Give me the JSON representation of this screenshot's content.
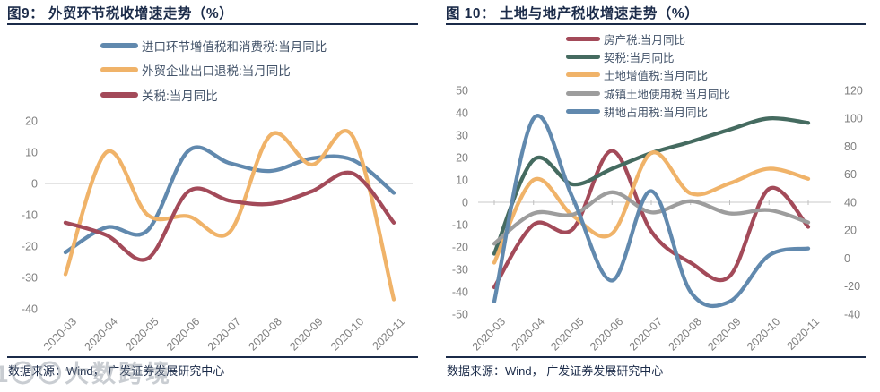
{
  "watermark": "1〇〇大数跨境",
  "colors": {
    "title_navy": "#1b2b49",
    "legend_text": "#44546a",
    "axis_label_gray": "#7f7f7f",
    "zero_line_gray": "#c9c9c9",
    "series_blue": "#6189ae",
    "series_yellow": "#f0b369",
    "series_red": "#a34a59",
    "series_green": "#456b60",
    "series_gray": "#9d9d9d"
  },
  "panels": [
    {
      "title": "图9： 外贸环节税收增速走势（%）",
      "source": "数据来源：Wind， 广发证券发展研究中心",
      "chart_data": {
        "type": "line",
        "title": "外贸环节税收增速走势（%）",
        "x": [
          "2020-03",
          "2020-04",
          "2020-05",
          "2020-06",
          "2020-07",
          "2020-08",
          "2020-09",
          "2020-10",
          "2020-11"
        ],
        "ylim": [
          -40,
          20
        ],
        "ytick_step": 10,
        "grid": "zero-line-only",
        "legend_position": "top",
        "line_style": "smooth",
        "series": [
          {
            "name": "进口环节增值税和消费税:当月同比",
            "color": "#6189ae",
            "axis": "left",
            "values": [
              -22,
              -14,
              -15,
              10.5,
              6.5,
              4,
              8,
              7.5,
              -3
            ]
          },
          {
            "name": "外贸企业出口退税:当月同比",
            "color": "#f0b369",
            "axis": "left",
            "values": [
              -29,
              10,
              -10,
              -10.5,
              -15.5,
              15.5,
              6,
              15,
              -37
            ]
          },
          {
            "name": "关税:当月同比",
            "color": "#a34a59",
            "axis": "left",
            "values": [
              -12.5,
              -16.5,
              -24,
              -2.5,
              -5.5,
              -6.5,
              -2.5,
              3.2,
              -12.5
            ]
          }
        ]
      }
    },
    {
      "title": "图 10： 土地与地产税收增速走势（%）",
      "source": "数据来源：Wind， 广发证券发展研究中心",
      "chart_data": {
        "type": "line",
        "title": "土地与地产税收增速走势（%）",
        "x": [
          "2020-03",
          "2020-04",
          "2020-05",
          "2020-06",
          "2020-07",
          "2020-08",
          "2020-09",
          "2020-10",
          "2020-11"
        ],
        "ylim_left": [
          -50,
          50
        ],
        "ylim_right": [
          -40,
          120
        ],
        "ytick_step_left": 10,
        "ytick_step_right": 20,
        "grid": "zero-line-only",
        "legend_position": "top",
        "line_style": "smooth",
        "series": [
          {
            "name": "房产税:当月同比",
            "color": "#a34a59",
            "axis": "left",
            "values": [
              -38,
              -10,
              -12,
              23,
              -13,
              -27,
              -33,
              6,
              -11
            ]
          },
          {
            "name": "契税:当月同比",
            "color": "#456b60",
            "axis": "left",
            "values": [
              -23,
              19,
              8,
              15,
              22,
              27,
              32.5,
              37.5,
              35.5
            ]
          },
          {
            "name": "土地增值税:当月同比",
            "color": "#f0b369",
            "axis": "left",
            "values": [
              -27,
              10,
              -6,
              -14,
              22,
              4,
              8.5,
              15,
              10.5
            ]
          },
          {
            "name": "城镇土地使用税:当月同比",
            "color": "#9d9d9d",
            "axis": "left",
            "values": [
              -18.5,
              -5,
              -5.5,
              4.5,
              -4.5,
              0.5,
              -5,
              -3.5,
              -9
            ]
          },
          {
            "name": "耕地占用税:当月同比",
            "color": "#6189ae",
            "axis": "right",
            "values": [
              -31,
              100,
              43,
              -16,
              48,
              -24,
              -31,
              2,
              7
            ]
          }
        ]
      }
    }
  ]
}
